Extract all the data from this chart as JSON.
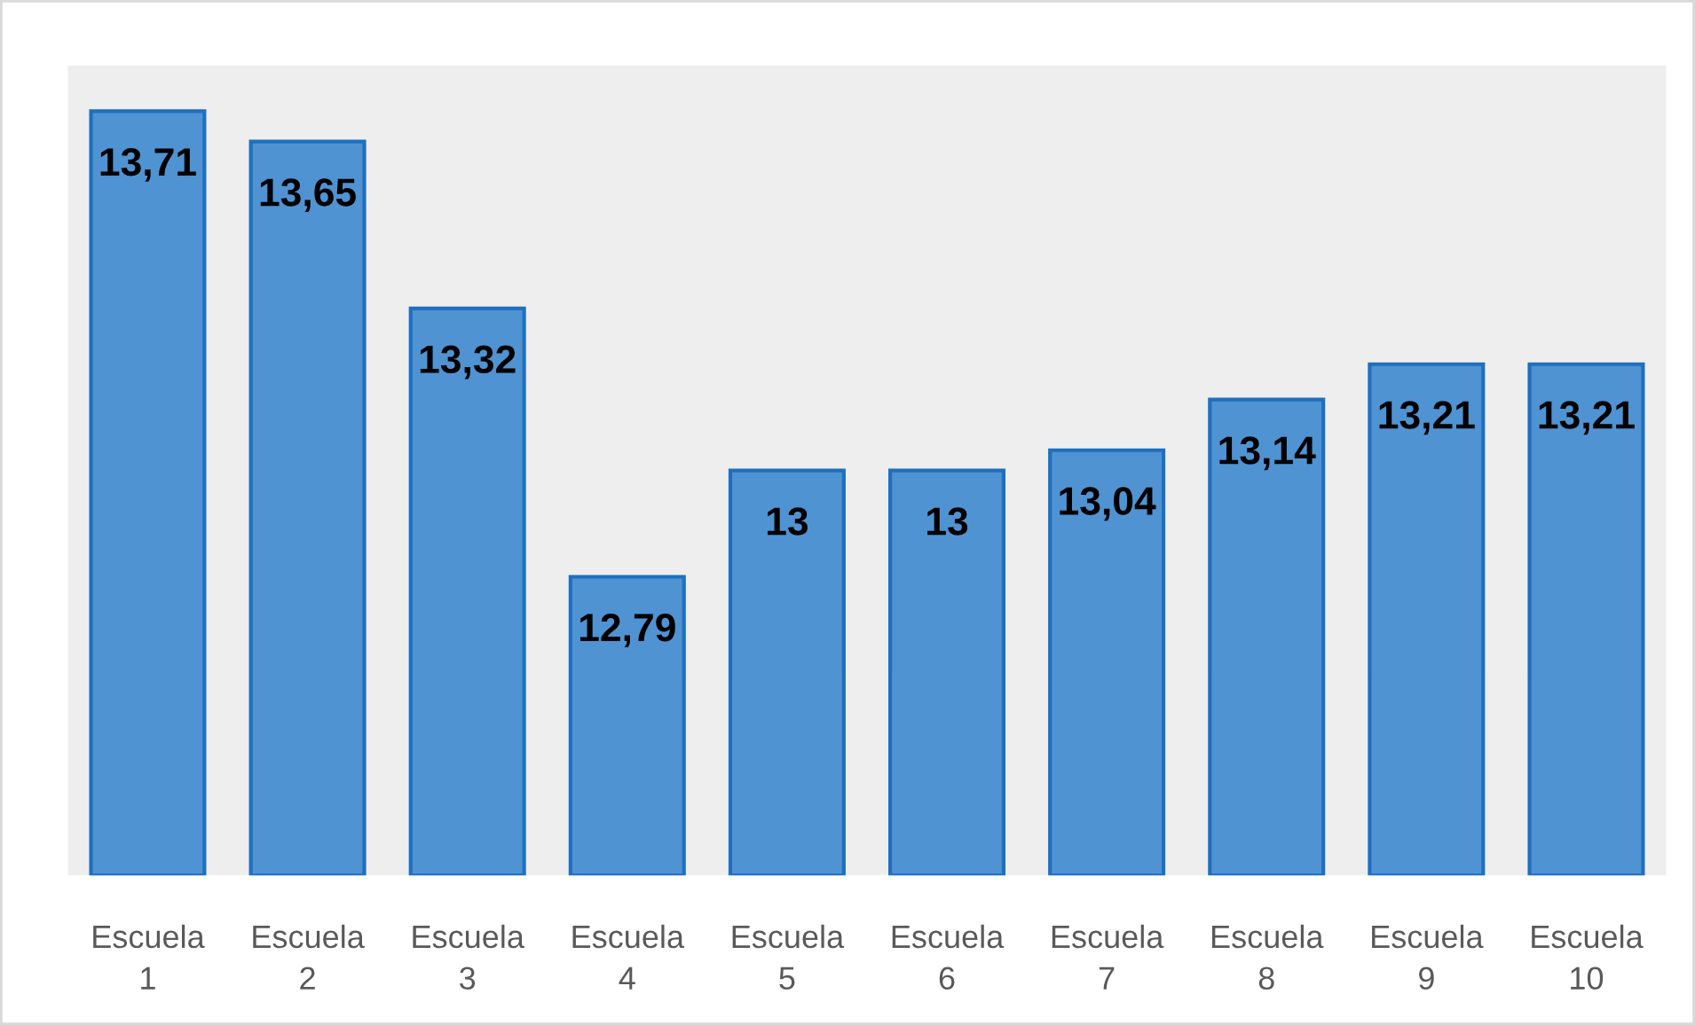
{
  "chart_data": {
    "type": "bar",
    "categories": [
      "Escuela 1",
      "Escuela 2",
      "Escuela 3",
      "Escuela 4",
      "Escuela 5",
      "Escuela 6",
      "Escuela 7",
      "Escuela 8",
      "Escuela 9",
      "Escuela 10"
    ],
    "values": [
      13.71,
      13.65,
      13.32,
      12.79,
      13,
      13,
      13.04,
      13.14,
      13.21,
      13.21
    ],
    "value_labels": [
      "13,71",
      "13,65",
      "13,32",
      "12,79",
      "13",
      "13",
      "13,04",
      "13,14",
      "13,21",
      "13,21"
    ],
    "color": "#4f93d3",
    "ylim": [
      12.2,
      13.8
    ],
    "tick_labels": "x"
  }
}
